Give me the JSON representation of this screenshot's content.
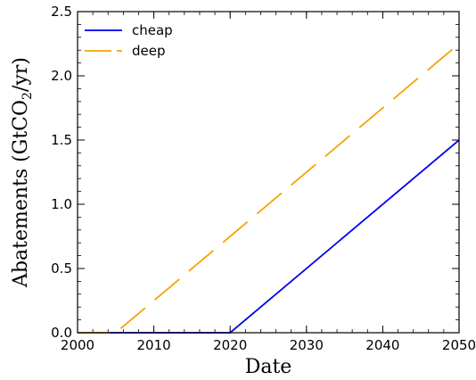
{
  "chart_data": {
    "type": "line",
    "title": "",
    "xlabel": "Date",
    "ylabel": "Abatements (GtCO",
    "ylabel_sub": "2",
    "ylabel_tail": "/yr)",
    "xlim": [
      2000,
      2050
    ],
    "ylim": [
      0,
      2.5
    ],
    "x_ticks": [
      "2000",
      "2010",
      "2020",
      "2030",
      "2040",
      "2050"
    ],
    "y_ticks": [
      "0.0",
      "0.5",
      "1.0",
      "1.5",
      "2.0",
      "2.5"
    ],
    "grid": false,
    "legend_position": "top-left",
    "series": [
      {
        "name": "cheap",
        "color": "#0000ee",
        "style": "solid",
        "points": [
          [
            2000,
            0
          ],
          [
            2020,
            0
          ],
          [
            2050,
            1.5
          ]
        ]
      },
      {
        "name": "deep",
        "color": "#f5a300",
        "style": "dashed",
        "points": [
          [
            2000,
            0
          ],
          [
            2005,
            0
          ],
          [
            2007,
            0.1
          ],
          [
            2050,
            2.25
          ]
        ]
      }
    ]
  }
}
